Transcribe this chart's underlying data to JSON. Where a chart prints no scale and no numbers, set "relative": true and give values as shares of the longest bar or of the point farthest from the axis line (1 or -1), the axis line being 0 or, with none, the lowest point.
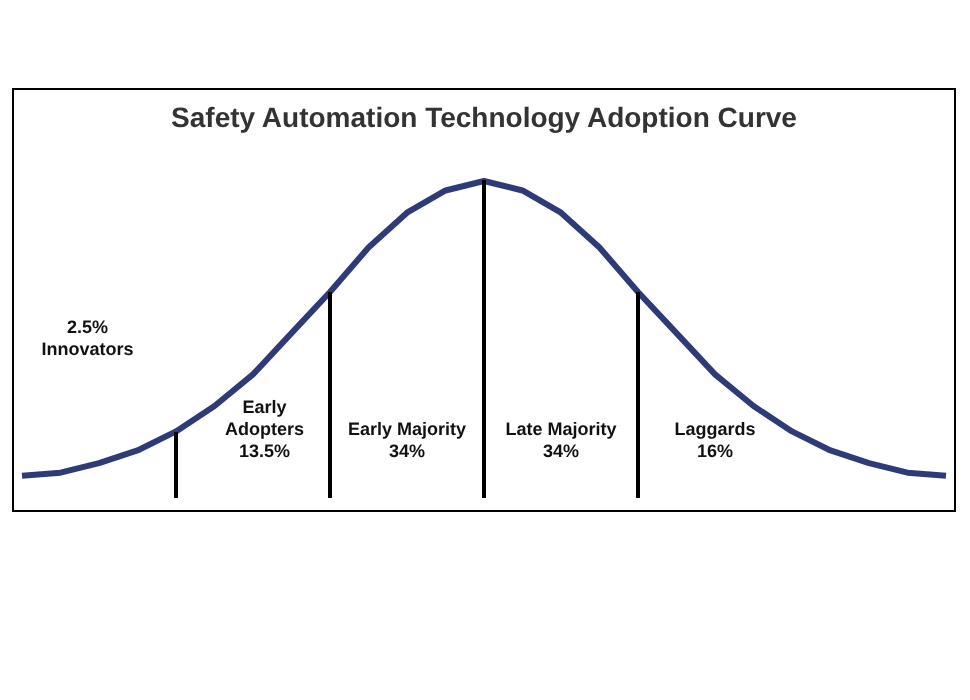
{
  "chart_data": {
    "type": "line",
    "title": "Safety Automation Technology Adoption Curve",
    "relative": true,
    "legend": false,
    "marker": "none",
    "line_style": "solid",
    "categories": [
      null,
      null,
      null,
      null,
      null,
      null,
      null,
      null,
      null,
      null,
      null,
      null,
      null,
      null,
      null,
      null,
      null,
      null,
      null,
      null,
      null,
      null,
      null,
      null,
      null
    ],
    "series": [
      {
        "color": "#2e3b78",
        "values": [
          0.07,
          0.08,
          0.11,
          0.15,
          0.21,
          0.29,
          0.39,
          0.52,
          0.65,
          0.79,
          0.9,
          0.97,
          1,
          0.97,
          0.9,
          0.79,
          0.65,
          0.52,
          0.39,
          0.29,
          0.21,
          0.15,
          0.11,
          0.08,
          0.07
        ]
      }
    ],
    "annotations": [
      "2.5%\nInnovators",
      "Early\nAdopters\n13.5%",
      "Early Majority\n34%",
      "Late Majority\n34%",
      "Laggards\n16%"
    ]
  }
}
